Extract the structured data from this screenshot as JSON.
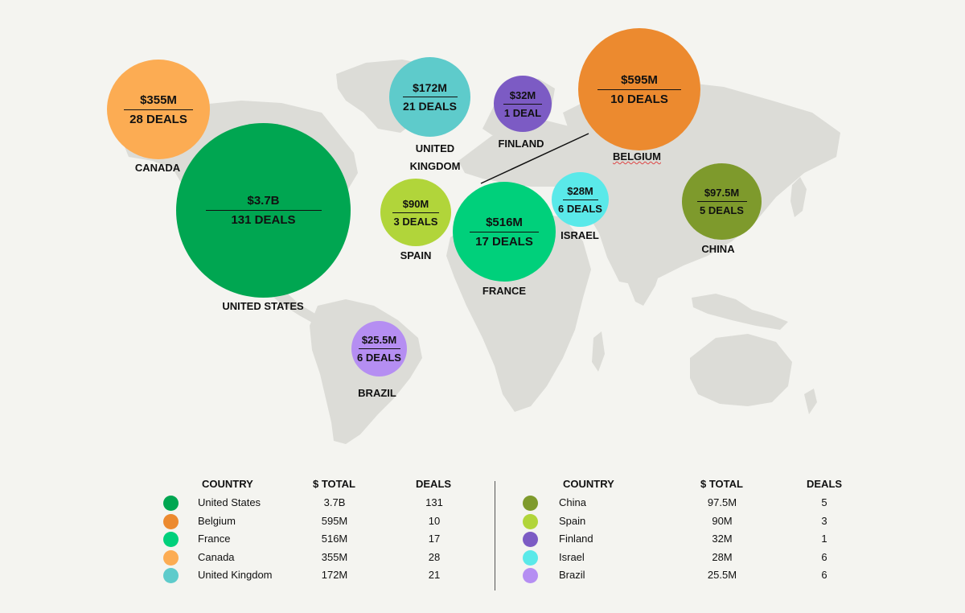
{
  "chart_data": {
    "type": "bubble-map",
    "bubbles": [
      {
        "id": "united-states",
        "country": "UNITED STATES",
        "amount": "$3.7B",
        "deals": "131 DEALS",
        "color": "#00a651"
      },
      {
        "id": "canada",
        "country": "CANADA",
        "amount": "$355M",
        "deals": "28 DEALS",
        "color": "#fcac53"
      },
      {
        "id": "united-kingdom",
        "country": "UNITED\nKINGDOM",
        "amount": "$172M",
        "deals": "21 DEALS",
        "color": "#5ecbcb"
      },
      {
        "id": "finland",
        "country": "FINLAND",
        "amount": "$32M",
        "deals": "1 DEAL",
        "color": "#7c5bc4"
      },
      {
        "id": "belgium",
        "country": "BELGIUM",
        "amount": "$595M",
        "deals": "10 DEALS",
        "color": "#ec8a2f"
      },
      {
        "id": "spain",
        "country": "SPAIN",
        "amount": "$90M",
        "deals": "3 DEALS",
        "color": "#b1d53a"
      },
      {
        "id": "france",
        "country": "FRANCE",
        "amount": "$516M",
        "deals": "17 DEALS",
        "color": "#00d07b"
      },
      {
        "id": "israel",
        "country": "ISRAEL",
        "amount": "$28M",
        "deals": "6 DEALS",
        "color": "#5ae9e9"
      },
      {
        "id": "china",
        "country": "CHINA",
        "amount": "$97.5M",
        "deals": "5 DEALS",
        "color": "#7e9a2c"
      },
      {
        "id": "brazil",
        "country": "BRAZIL",
        "amount": "$25.5M",
        "deals": "6 DEALS",
        "color": "#b58ef2"
      }
    ]
  },
  "legend": {
    "headers": {
      "country": "COUNTRY",
      "total": "$ TOTAL",
      "deals": "DEALS"
    },
    "left": [
      {
        "country": "United States",
        "total": "3.7B",
        "deals": "131",
        "color": "#00a651"
      },
      {
        "country": "Belgium",
        "total": "595M",
        "deals": "10",
        "color": "#ec8a2f"
      },
      {
        "country": "France",
        "total": "516M",
        "deals": "17",
        "color": "#00d07b"
      },
      {
        "country": "Canada",
        "total": "355M",
        "deals": "28",
        "color": "#fcac53"
      },
      {
        "country": "United Kingdom",
        "total": "172M",
        "deals": "21",
        "color": "#5ecbcb"
      }
    ],
    "right": [
      {
        "country": "China",
        "total": "97.5M",
        "deals": "5",
        "color": "#7e9a2c"
      },
      {
        "country": "Spain",
        "total": "90M",
        "deals": "3",
        "color": "#b1d53a"
      },
      {
        "country": "Finland",
        "total": "32M",
        "deals": "1",
        "color": "#7c5bc4"
      },
      {
        "country": "Israel",
        "total": "28M",
        "deals": "6",
        "color": "#5ae9e9"
      },
      {
        "country": "Brazil",
        "total": "25.5M",
        "deals": "6",
        "color": "#b58ef2"
      }
    ]
  }
}
